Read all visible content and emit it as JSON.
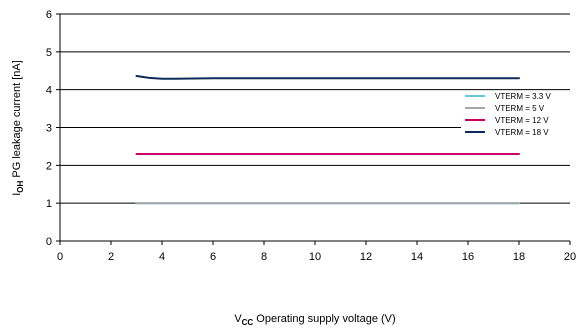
{
  "chart_data": {
    "type": "line",
    "title": "",
    "xlabel": {
      "prefix": "V",
      "sub": "CC",
      "text": " Operating supply voltage (V)"
    },
    "ylabel": {
      "prefix": "I",
      "sub": "OH",
      "text": "  PG leakage current [nA]"
    },
    "xlim": [
      0,
      20
    ],
    "ylim": [
      0,
      6
    ],
    "xticks": [
      "0",
      "2",
      "4",
      "6",
      "8",
      "10",
      "12",
      "14",
      "16",
      "18",
      "20"
    ],
    "yticks": [
      "0",
      "1",
      "2",
      "3",
      "4",
      "5",
      "6"
    ],
    "grid": "horizontal",
    "legend_position": "right",
    "series": [
      {
        "name": "VTERM = 3.3 V",
        "color": "#66c6d8",
        "x": [
          3,
          6,
          10,
          14,
          18
        ],
        "y": [
          1.0,
          1.0,
          1.0,
          1.0,
          1.0
        ]
      },
      {
        "name": "VTERM = 5 V",
        "color": "#a6a6a6",
        "x": [
          3,
          6,
          10,
          14,
          18
        ],
        "y": [
          1.0,
          1.0,
          1.0,
          1.0,
          1.0
        ]
      },
      {
        "name": "VTERM = 12 V",
        "color": "#cc0066",
        "x": [
          3,
          6,
          10,
          14,
          18
        ],
        "y": [
          2.3,
          2.3,
          2.3,
          2.3,
          2.3
        ]
      },
      {
        "name": "VTERM = 18 V",
        "color": "#0d2b5a",
        "x": [
          3,
          3.5,
          4,
          4.5,
          6,
          10,
          14,
          18
        ],
        "y": [
          4.36,
          4.31,
          4.29,
          4.29,
          4.3,
          4.3,
          4.3,
          4.3
        ]
      }
    ]
  }
}
